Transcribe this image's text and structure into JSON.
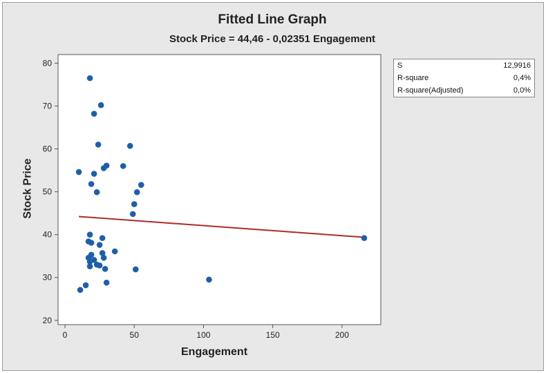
{
  "chart_data": {
    "type": "scatter",
    "title": "Fitted Line Graph",
    "subtitle": "Stock Price = 44,46 - 0,02351 Engagement",
    "xlabel": "Engagement",
    "ylabel": "Stock Price",
    "xlim": [
      -5,
      228
    ],
    "ylim": [
      19,
      82
    ],
    "xticks": [
      0,
      50,
      100,
      150,
      200
    ],
    "yticks": [
      20,
      30,
      40,
      50,
      60,
      70,
      80
    ],
    "grid": false,
    "points": [
      {
        "x": 18,
        "y": 76.5
      },
      {
        "x": 26,
        "y": 70.2
      },
      {
        "x": 21,
        "y": 68.2
      },
      {
        "x": 24,
        "y": 61.0
      },
      {
        "x": 47,
        "y": 60.7
      },
      {
        "x": 30,
        "y": 56.1
      },
      {
        "x": 28,
        "y": 55.5
      },
      {
        "x": 42,
        "y": 56.0
      },
      {
        "x": 10,
        "y": 54.6
      },
      {
        "x": 21,
        "y": 54.2
      },
      {
        "x": 19,
        "y": 51.8
      },
      {
        "x": 55,
        "y": 51.6
      },
      {
        "x": 23,
        "y": 49.9
      },
      {
        "x": 52,
        "y": 49.9
      },
      {
        "x": 50,
        "y": 47.1
      },
      {
        "x": 49,
        "y": 44.8
      },
      {
        "x": 18,
        "y": 40.0
      },
      {
        "x": 27,
        "y": 39.2
      },
      {
        "x": 17,
        "y": 38.4
      },
      {
        "x": 19,
        "y": 38.1
      },
      {
        "x": 25,
        "y": 37.6
      },
      {
        "x": 36,
        "y": 36.1
      },
      {
        "x": 27,
        "y": 35.7
      },
      {
        "x": 19,
        "y": 35.3
      },
      {
        "x": 17,
        "y": 34.6
      },
      {
        "x": 28,
        "y": 34.6
      },
      {
        "x": 21,
        "y": 34.1
      },
      {
        "x": 18,
        "y": 33.7
      },
      {
        "x": 23,
        "y": 33.0
      },
      {
        "x": 25,
        "y": 32.8
      },
      {
        "x": 18,
        "y": 32.6
      },
      {
        "x": 29,
        "y": 32.0
      },
      {
        "x": 51,
        "y": 31.9
      },
      {
        "x": 30,
        "y": 28.8
      },
      {
        "x": 15,
        "y": 28.2
      },
      {
        "x": 11,
        "y": 27.1
      },
      {
        "x": 104,
        "y": 29.5
      },
      {
        "x": 216,
        "y": 39.2
      }
    ],
    "fit": {
      "intercept": 44.46,
      "slope": -0.02351,
      "x_range": [
        10,
        216
      ]
    },
    "point_color": "#1f5fa8",
    "line_color": "#b02a2a",
    "stats": [
      {
        "label": "S",
        "value": "12,9916"
      },
      {
        "label": "R-square",
        "value": "0,4%"
      },
      {
        "label": "R-square(Adjusted)",
        "value": "0,0%"
      }
    ]
  }
}
